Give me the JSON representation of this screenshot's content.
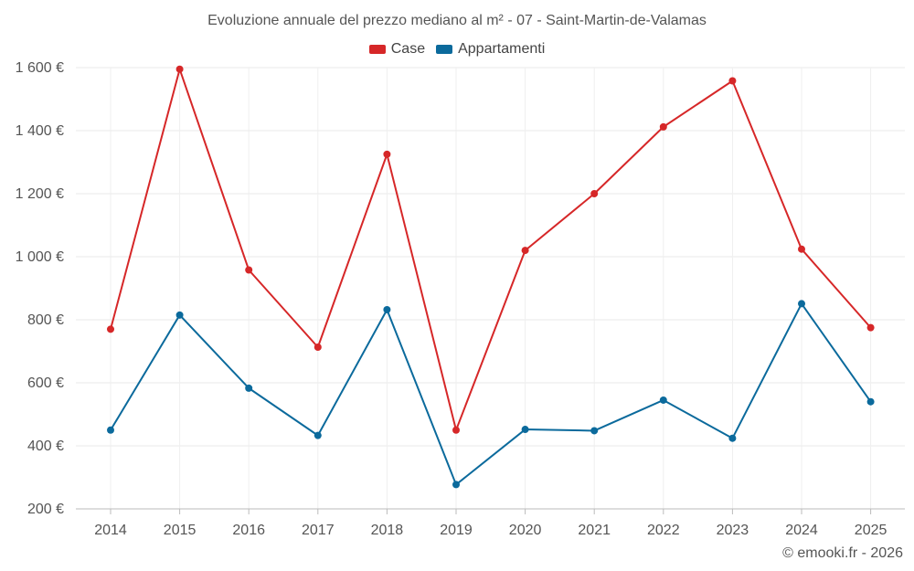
{
  "chart_data": {
    "type": "line",
    "title": "Evoluzione annuale del prezzo mediano al m² - 07 - Saint-Martin-de-Valamas",
    "categories": [
      "2014",
      "2015",
      "2016",
      "2017",
      "2018",
      "2019",
      "2020",
      "2021",
      "2022",
      "2023",
      "2024",
      "2025"
    ],
    "series": [
      {
        "name": "Case",
        "color": "#d62728",
        "values": [
          770,
          1595,
          958,
          713,
          1325,
          450,
          1020,
          1200,
          1412,
          1558,
          1024,
          775
        ]
      },
      {
        "name": "Appartamenti",
        "color": "#0b6a9c",
        "values": [
          450,
          815,
          583,
          433,
          832,
          277,
          452,
          448,
          545,
          424,
          851,
          540
        ]
      }
    ],
    "ylim": [
      200,
      1600
    ],
    "yticks": [
      200,
      400,
      600,
      800,
      1000,
      1200,
      1400,
      1600
    ],
    "ytick_labels": [
      "200 €",
      "400 €",
      "600 €",
      "800 €",
      "1 000 €",
      "1 200 €",
      "1 400 €",
      "1 600 €"
    ],
    "xlabel": "",
    "ylabel": "",
    "grid": true,
    "legend_position": "top-center"
  },
  "credit": "© emooki.fr - 2026"
}
